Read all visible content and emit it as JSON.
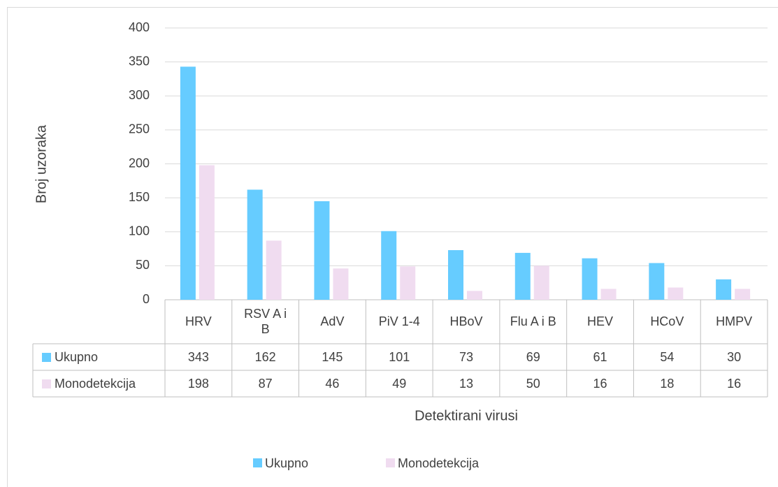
{
  "chart_data": {
    "type": "bar",
    "x_label": "Detektirani virusi",
    "y_label": "Broj uzoraka",
    "categories": [
      "HRV",
      "RSV A i B",
      "AdV",
      "PiV 1-4",
      "HBoV",
      "Flu A i B",
      "HEV",
      "HCoV",
      "HMPV"
    ],
    "series": [
      {
        "name": "Ukupno",
        "color": "#66ccff",
        "values": [
          343,
          162,
          145,
          101,
          73,
          69,
          61,
          54,
          30
        ]
      },
      {
        "name": "Monodetekcija",
        "color": "#f0dcf0",
        "values": [
          198,
          87,
          46,
          49,
          13,
          50,
          16,
          18,
          16
        ]
      }
    ],
    "ylim": [
      0,
      400
    ],
    "yticks": [
      0,
      50,
      100,
      150,
      200,
      250,
      300,
      350,
      400
    ],
    "grid": true,
    "legend": "bottom",
    "data_table": true
  }
}
